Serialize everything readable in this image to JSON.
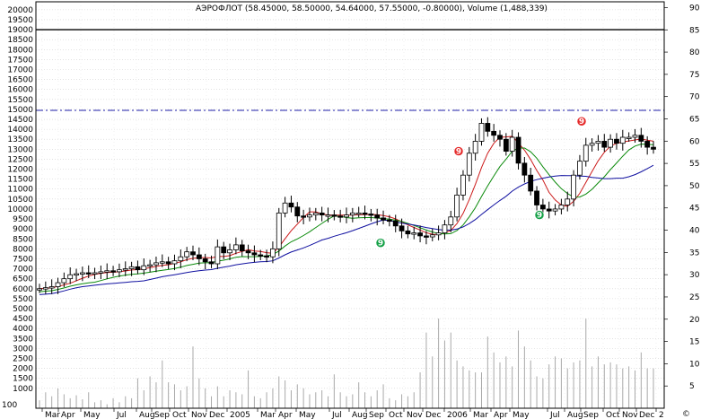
{
  "chart_data": {
    "type": "candlestick",
    "title": "АЭРОФЛОТ (58.45000, 58.50000, 54.64000, 57.55000, -0.80000), Volume (1,488,339)",
    "left_axis": {
      "label_values": [
        1000,
        1500,
        2000,
        2500,
        3000,
        3500,
        4000,
        4500,
        5000,
        5500,
        6000,
        6500,
        7000,
        7500,
        8000,
        8500,
        9000,
        9500,
        10000,
        10500,
        11000,
        11500,
        12000,
        12500,
        13000,
        13500,
        14000,
        14500,
        15000,
        15500,
        16000,
        16500,
        17000,
        17500,
        18000,
        18500,
        19000,
        19500,
        20000
      ],
      "range": [
        0,
        20400
      ]
    },
    "right_axis": {
      "label_values": [
        5,
        10,
        15,
        20,
        25,
        30,
        35,
        40,
        45,
        50,
        55,
        60,
        65,
        70,
        75,
        80,
        85,
        90
      ],
      "range": [
        0,
        91.3
      ]
    },
    "x_axis": {
      "bottom_left_label": "100",
      "labels": [
        "Mar",
        "Apr",
        "May",
        "Jul",
        "Aug",
        "Sep",
        "Oct",
        "Nov",
        "Dec",
        "2005",
        "Mar",
        "Apr",
        "May",
        "Jul",
        "Aug",
        "Sep",
        "Oct",
        "Nov",
        "Dec",
        "2006",
        "Mar",
        "Apr",
        "May",
        "Jul",
        "Aug",
        "Sep",
        "Oct",
        "Nov",
        "Dec",
        "2"
      ]
    },
    "reference_lines": [
      {
        "value": 19000,
        "style": "solid",
        "color": "#000000"
      },
      {
        "value": 14950,
        "style": "dash-dot",
        "color": "#1f1fa8"
      }
    ],
    "price_series": [
      6000,
      6050,
      6100,
      6300,
      6500,
      6700,
      6750,
      6800,
      6750,
      6800,
      6850,
      6900,
      6850,
      6950,
      7000,
      7100,
      6950,
      7150,
      7200,
      7300,
      7350,
      7250,
      7400,
      7600,
      7850,
      7700,
      7500,
      7350,
      7250,
      8100,
      7800,
      7950,
      8200,
      7900,
      7800,
      7700,
      7650,
      7600,
      8000,
      9800,
      10300,
      10100,
      9650,
      9600,
      9700,
      9800,
      9700,
      9700,
      9650,
      9600,
      9700,
      9800,
      9800,
      9750,
      9700,
      9550,
      9450,
      9400,
      9150,
      8900,
      8750,
      8800,
      8650,
      8600,
      8700,
      8800,
      9200,
      9600,
      10700,
      11700,
      12800,
      13400,
      14300,
      13900,
      13700,
      13500,
      12900,
      13600,
      12300,
      11700,
      10900,
      10200,
      10000,
      9900,
      10000,
      10200,
      10500,
      11700,
      12400,
      13200,
      13300,
      13400,
      13100,
      13500,
      13300,
      13600,
      13600,
      13700,
      13400,
      13100,
      13000
    ],
    "moving_averages": [
      {
        "color": "#cc1a1a"
      },
      {
        "color": "#0b8a0b"
      },
      {
        "color": "#1010a0"
      }
    ],
    "volume_series": [
      400,
      800,
      600,
      1000,
      700,
      500,
      650,
      450,
      800,
      300,
      400,
      200,
      500,
      300,
      600,
      500,
      1500,
      900,
      1600,
      1300,
      2400,
      1300,
      1200,
      900,
      1100,
      3100,
      1500,
      1000,
      600,
      1100,
      600,
      900,
      800,
      700,
      1900,
      600,
      500,
      800,
      1000,
      1600,
      1400,
      900,
      1200,
      1000,
      700,
      800,
      900,
      600,
      1700,
      800,
      600,
      700,
      1300,
      800,
      600,
      900,
      1200,
      500,
      400,
      700,
      600,
      800,
      1800,
      3800,
      2600,
      4500,
      3400,
      3800,
      2400,
      2100,
      1900,
      1800,
      1800,
      3600,
      2800,
      2300,
      2600,
      2100,
      3900,
      3100,
      2400,
      1600,
      1500,
      2200,
      2600,
      2500,
      2000,
      2300,
      2400,
      4500,
      2100,
      2600,
      2200,
      2300,
      2200,
      2000,
      2100,
      1900,
      2800,
      2000,
      2000
    ],
    "signals": [
      {
        "type": "sell",
        "symbol": "9",
        "color": "#e52b2b",
        "x_label": "Mar",
        "value": 12900
      },
      {
        "type": "sell",
        "symbol": "9",
        "color": "#e52b2b",
        "x_label": "Sep",
        "value": 14400
      },
      {
        "type": "buy",
        "symbol": "9",
        "color": "#14a046",
        "x_label": "Sep",
        "value": 8300
      },
      {
        "type": "buy",
        "symbol": "9",
        "color": "#14a046",
        "x_label": "Jul",
        "value": 9700
      }
    ],
    "grid": true
  },
  "footer": {
    "copyright_icon": "copyright-symbol"
  }
}
